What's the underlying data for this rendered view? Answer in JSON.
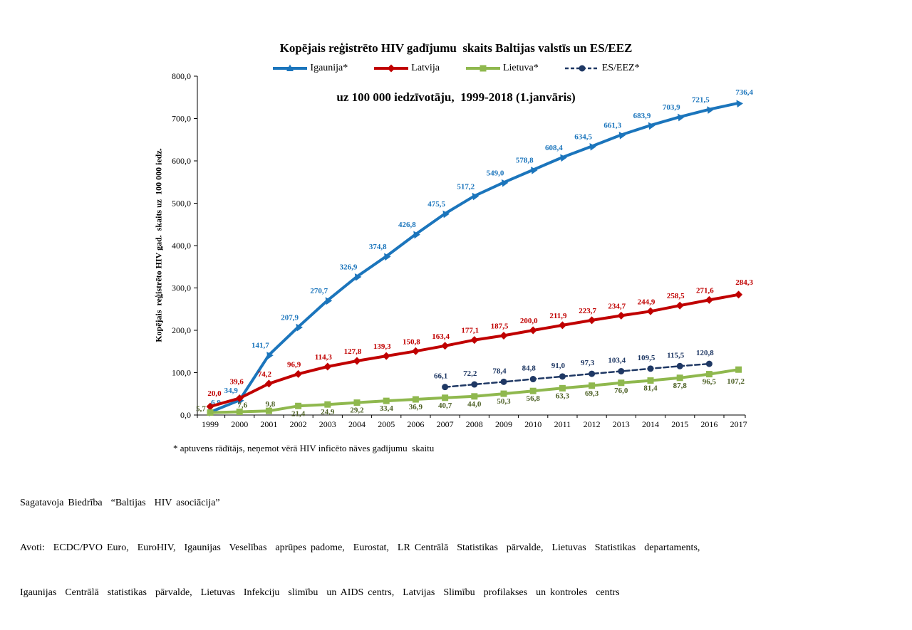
{
  "title": {
    "line1": "Kopējais reģistrēto HIV gadījumu  skaits Baltijas valstīs un ES/EEZ",
    "line2": "uz 100 000 iedzīvotāju,  1999-2018 (1.janvāris)"
  },
  "footnote": "* aptuvens rādītājs, neņemot vērā HIV inficēto nāves gadījumu  skaitu",
  "credits": {
    "prepared_by": "Sagatavoja Biedrība  “Baltijas  HIV asociācija”",
    "sources_line1": "Avoti:  ECDC/PVO Euro,  EuroHIV,  Igaunijas  Veselības  aprūpes padome,  Eurostat,  LR Centrālā  Statistikas  pārvalde,  Lietuvas  Statistikas  departaments,",
    "sources_line2": "Igaunijas  Centrālā  statistikas  pārvalde,  Lietuvas  Infekciju  slimību  un AIDS centrs,  Latvijas  Slimību  profilakses  un kontroles  centrs"
  },
  "chart_data": {
    "type": "line",
    "title": "Kopējais reģistrēto HIV gadījumu skaits Baltijas valstīs un ES/EEZ uz 100 000 iedzīvotāju, 1999-2018 (1.janvāris)",
    "xlabel": "",
    "ylabel": "Kopējais  reģistrēto HIV gad.  skaits uz  100 000 iedz.",
    "ylim": [
      0,
      800
    ],
    "ytick_step": 100,
    "ytick_labels": [
      "0,0",
      "100,0",
      "200,0",
      "300,0",
      "400,0",
      "500,0",
      "600,0",
      "700,0",
      "800,0"
    ],
    "grid": false,
    "legend_position": "top",
    "categories": [
      "1999",
      "2000",
      "2001",
      "2002",
      "2003",
      "2004",
      "2005",
      "2006",
      "2007",
      "2008",
      "2009",
      "2010",
      "2011",
      "2012",
      "2013",
      "2014",
      "2015",
      "2016",
      "2017"
    ],
    "series": [
      {
        "name": "Igaunija*",
        "color": "#1B75BC",
        "label_color": "#1B75BC",
        "marker": "triangle",
        "line_style": "solid",
        "values": [
          6.9,
          34.9,
          141.7,
          207.9,
          270.7,
          326.9,
          374.8,
          426.8,
          475.5,
          517.2,
          549.0,
          578.8,
          608.4,
          634.5,
          661.3,
          683.9,
          703.9,
          721.5,
          736.4
        ],
        "labels": [
          "6,9",
          "34,9",
          "141,7",
          "207,9",
          "270,7",
          "326,9",
          "374,8",
          "426,8",
          "475,5",
          "517,2",
          "549,0",
          "578,8",
          "608,4",
          "634,5",
          "661,3",
          "683,9",
          "703,9",
          "721,5",
          "736,4"
        ]
      },
      {
        "name": "Latvija",
        "color": "#C00000",
        "label_color": "#C00000",
        "marker": "diamond",
        "line_style": "solid",
        "values": [
          20.0,
          39.6,
          74.2,
          96.9,
          114.3,
          127.8,
          139.3,
          150.8,
          163.4,
          177.1,
          187.5,
          200.0,
          211.9,
          223.7,
          234.7,
          244.9,
          258.5,
          271.6,
          284.3
        ],
        "labels": [
          "20,0",
          "39,6",
          "74,2",
          "96,9",
          "114,3",
          "127,8",
          "139,3",
          "150,8",
          "163,4",
          "177,1",
          "187,5",
          "200,0",
          "211,9",
          "223,7",
          "234,7",
          "244,9",
          "258,5",
          "271,6",
          "284,3"
        ]
      },
      {
        "name": "Lietuva*",
        "color": "#8FB84E",
        "label_color": "#4F6228",
        "marker": "square",
        "line_style": "solid",
        "values": [
          5.7,
          7.6,
          9.8,
          21.4,
          24.9,
          29.2,
          33.4,
          36.9,
          40.7,
          44.0,
          50.3,
          56.8,
          63.3,
          69.3,
          76.0,
          81.4,
          87.8,
          96.5,
          107.2
        ],
        "labels": [
          "5,7",
          "7,6",
          "9,8",
          "21,4",
          "24,9",
          "29,2",
          "33,4",
          "36,9",
          "40,7",
          "44,0",
          "50,3",
          "56,8",
          "63,3",
          "69,3",
          "76,0",
          "81,4",
          "87,8",
          "96,5",
          "107,2"
        ]
      },
      {
        "name": "ES/EEZ*",
        "color": "#1F3864",
        "label_color": "#1F3864",
        "marker": "circle",
        "line_style": "dashed",
        "values": [
          null,
          null,
          null,
          null,
          null,
          null,
          null,
          null,
          66.1,
          72.2,
          78.4,
          84.8,
          91.0,
          97.3,
          103.4,
          109.5,
          115.5,
          120.8,
          null
        ],
        "labels": [
          null,
          null,
          null,
          null,
          null,
          null,
          null,
          null,
          "66,1",
          "72,2",
          "78,4",
          "84,8",
          "91,0",
          "97,3",
          "103,4",
          "109,5",
          "115,5",
          "120,8",
          null
        ]
      }
    ]
  }
}
